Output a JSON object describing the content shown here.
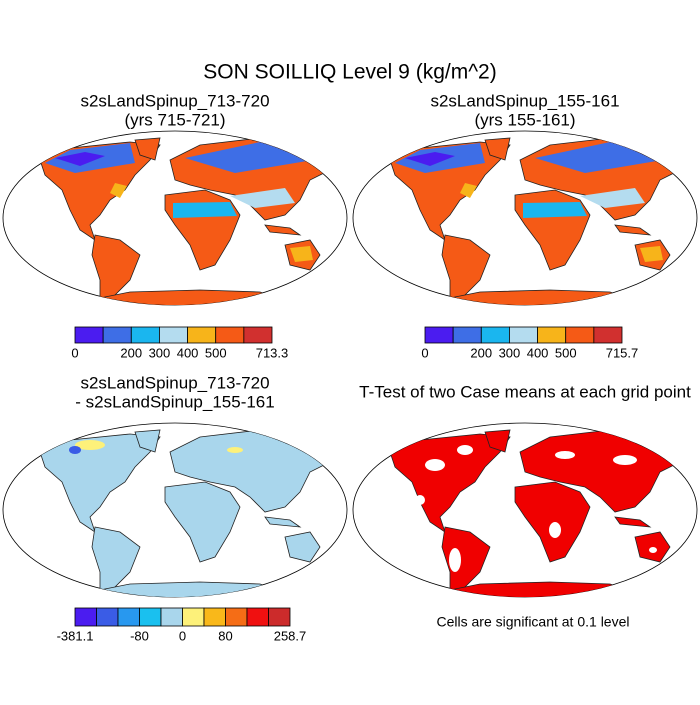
{
  "title": "SON SOILLIQ Level 9 (kg/m^2)",
  "panels": [
    {
      "title_lines": [
        "s2sLandSpinup_713-720",
        "(yrs 715-721)"
      ],
      "colorbar": {
        "colors": [
          "#4b1cf0",
          "#3e6ee6",
          "#1ab6ef",
          "#b4dcef",
          "#f7b41a",
          "#f55a16",
          "#d1302f"
        ],
        "boundary_labels": [
          "0",
          null,
          "200",
          "300",
          "400",
          "500",
          null,
          "713.3"
        ]
      }
    },
    {
      "title_lines": [
        "s2sLandSpinup_155-161",
        "(yrs 155-161)"
      ],
      "colorbar": {
        "colors": [
          "#4b1cf0",
          "#3e6ee6",
          "#1ab6ef",
          "#b4dcef",
          "#f7b41a",
          "#f55a16",
          "#d1302f"
        ],
        "boundary_labels": [
          "0",
          null,
          "200",
          "300",
          "400",
          "500",
          null,
          "715.7"
        ]
      }
    },
    {
      "title_lines": [
        "s2sLandSpinup_713-720",
        "- s2sLandSpinup_155-161"
      ],
      "colorbar": {
        "colors": [
          "#4b1cf0",
          "#3a5ce6",
          "#2898ef",
          "#1ac0ef",
          "#a9d6ec",
          "#fdf17a",
          "#f9b81a",
          "#f56d16",
          "#f01010",
          "#cc2b2b"
        ],
        "boundary_labels": [
          "-381.1",
          null,
          null,
          "-80",
          null,
          "0",
          null,
          "80",
          null,
          null,
          "258.7"
        ]
      }
    },
    {
      "title_lines": [
        "T-Test of two Case means at each grid point"
      ],
      "note": "Cells are significant at 0.1 level"
    }
  ]
}
